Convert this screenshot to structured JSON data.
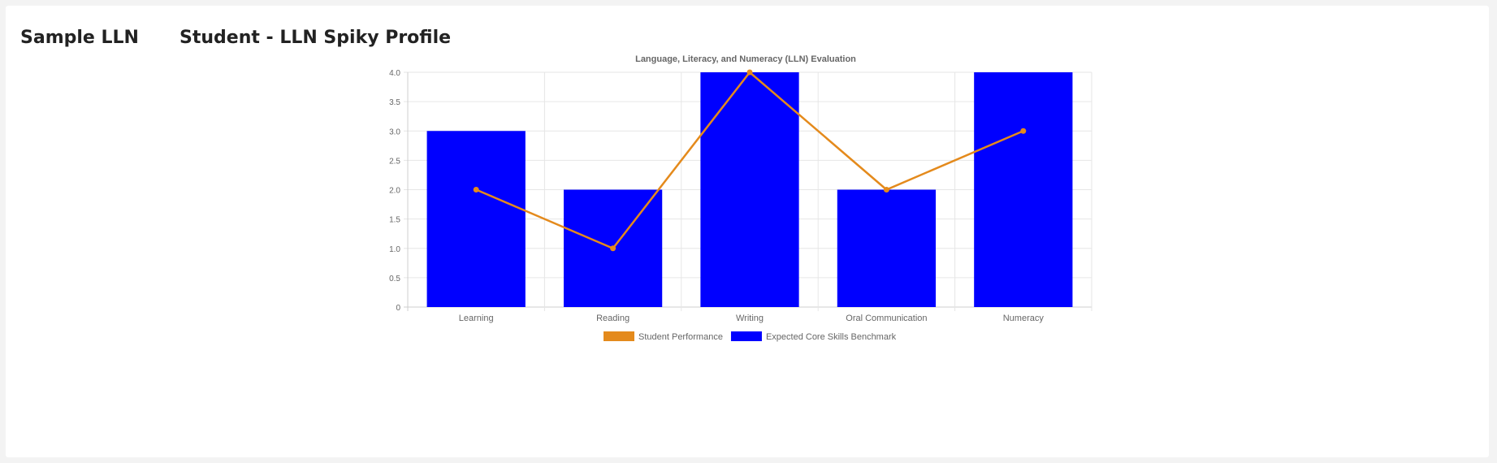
{
  "header": {
    "app_title": "Sample LLN",
    "page_title": "Student - LLN Spiky Profile"
  },
  "colors": {
    "bar": "#0000ff",
    "line": "#e48a1c",
    "grid": "#e6e6e6",
    "axis_text": "#666666",
    "title_text": "#666666"
  },
  "chart_data": {
    "type": "bar",
    "title": "Language, Literacy, and Numeracy (LLN) Evaluation",
    "xlabel": "",
    "ylabel": "",
    "categories": [
      "Learning",
      "Reading",
      "Writing",
      "Oral Communication",
      "Numeracy"
    ],
    "ylim": [
      0,
      4
    ],
    "yticks": [
      "0",
      "0.5",
      "1.0",
      "1.5",
      "2.0",
      "2.5",
      "3.0",
      "3.5",
      "4.0"
    ],
    "grid": true,
    "legend_position": "bottom",
    "series": [
      {
        "name": "Student Performance",
        "type": "line",
        "color": "#e48a1c",
        "values": [
          2,
          1,
          4,
          2,
          3
        ]
      },
      {
        "name": "Expected Core Skills Benchmark",
        "type": "bar",
        "color": "#0000ff",
        "values": [
          3,
          2,
          4,
          2,
          4
        ]
      }
    ]
  }
}
